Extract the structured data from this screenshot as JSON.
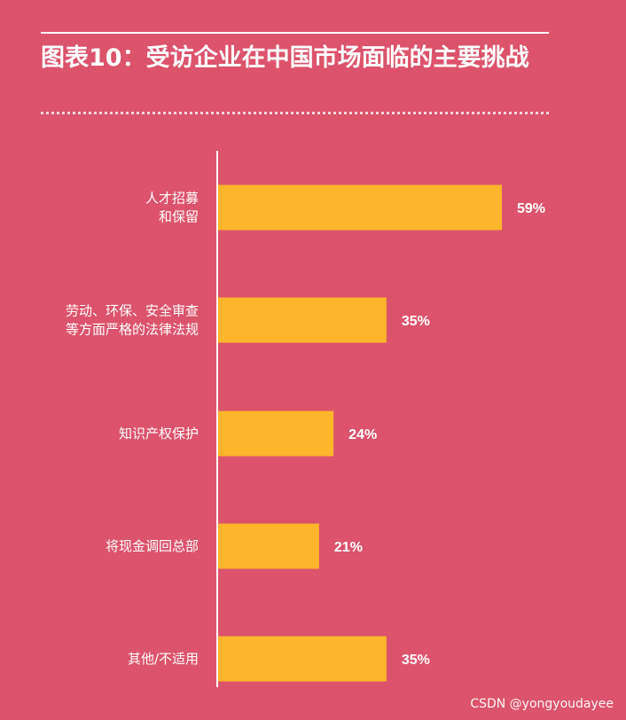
{
  "header": {
    "title": "图表10：受访企业在中国市场面临的主要挑战"
  },
  "watermark": "CSDN @yongyoudayee",
  "colors": {
    "background": "#dc536b",
    "bar": "#fdb52b",
    "text": "#ffffff"
  },
  "chart_data": {
    "type": "bar",
    "orientation": "horizontal",
    "title": "图表10：受访企业在中国市场面临的主要挑战",
    "categories": [
      [
        "人才招募",
        "和保留"
      ],
      [
        "劳动、环保、安全审查",
        "等方面严格的法律法规"
      ],
      [
        "知识产权保护"
      ],
      [
        "将现金调回总部"
      ],
      [
        "其他/不适用"
      ]
    ],
    "values": [
      59,
      35,
      24,
      21,
      35
    ],
    "value_labels": [
      "59%",
      "35%",
      "24%",
      "21%",
      "35%"
    ],
    "unit": "%",
    "xlim": [
      0,
      100
    ],
    "grid": false,
    "legend": "none"
  }
}
